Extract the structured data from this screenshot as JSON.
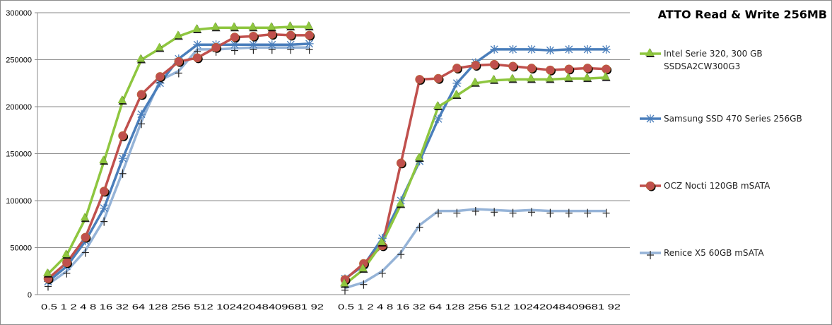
{
  "chart_data": {
    "type": "line",
    "title": "ATTO Read & Write 256MB",
    "xlabel": "",
    "ylabel": "",
    "ylim": [
      0,
      300000
    ],
    "yticks": [
      0,
      50000,
      100000,
      150000,
      200000,
      250000,
      300000
    ],
    "ytick_labels": [
      "0",
      "50000",
      "100000",
      "150000",
      "200000",
      "250000",
      "300000"
    ],
    "grid": true,
    "legend_position": "right",
    "categories": [
      "0.5",
      "1",
      "2",
      "4",
      "8",
      "16",
      "32",
      "64",
      "128",
      "256",
      "512",
      "1024",
      "2048",
      "4096",
      "8192"
    ],
    "panels": [
      {
        "series": [
          {
            "name": "Intel Serie 320, 300 GB SSDSA2CW300G3",
            "values": [
              22000,
              42000,
              81000,
              142000,
              206000,
              250000,
              262000,
              275000,
              282000,
              284000,
              284000,
              284000,
              284000,
              285000,
              285000
            ]
          },
          {
            "name": "Samsung SSD 470 Series 256GB",
            "values": [
              14000,
              30000,
              57000,
              92000,
              145000,
              192000,
              225000,
              251000,
              266000,
              266000,
              266000,
              266000,
              266000,
              266000,
              267000
            ]
          },
          {
            "name": "OCZ Nocti 120GB mSATA",
            "values": [
              17000,
              34000,
              61000,
              110000,
              169000,
              213000,
              232000,
              248000,
              252000,
              263000,
              274000,
              275000,
              277000,
              276000,
              276000
            ]
          },
          {
            "name": "Renice X5 60GB mSATA",
            "values": [
              11000,
              25000,
              47000,
              80000,
              131000,
              184000,
              228000,
              238000,
              261000,
              261000,
              262000,
              263000,
              263000,
              263000,
              263000
            ]
          }
        ]
      },
      {
        "series": [
          {
            "name": "Intel Serie 320, 300 GB SSDSA2CW300G3",
            "values": [
              11000,
              27000,
              55000,
              96000,
              145000,
              200000,
              212000,
              225000,
              228000,
              229000,
              229000,
              229000,
              230000,
              230000,
              231000
            ]
          },
          {
            "name": "Samsung SSD 470 Series 256GB",
            "values": [
              17000,
              31000,
              60000,
              100000,
              142000,
              187000,
              225000,
              247000,
              261000,
              261000,
              261000,
              260000,
              261000,
              261000,
              261000
            ]
          },
          {
            "name": "OCZ Nocti 120GB mSATA",
            "values": [
              16000,
              33000,
              52000,
              140000,
              229000,
              230000,
              241000,
              244000,
              245000,
              243000,
              241000,
              239000,
              240000,
              241000,
              240000
            ]
          },
          {
            "name": "Renice X5 60GB mSATA",
            "values": [
              7000,
              13000,
              25000,
              45000,
              74000,
              89000,
              89000,
              91000,
              90000,
              89000,
              90000,
              89000,
              89000,
              89000,
              89000
            ]
          }
        ]
      }
    ],
    "colors": [
      "#8ec63f",
      "#4a7ebb",
      "#c0504d",
      "#95b3d7"
    ],
    "markers": [
      "triangle",
      "asterisk",
      "circle",
      "plus"
    ],
    "x_tick_text": "0.5 1 2 4 8 16 32 64 128 256 512 10242048409681 92"
  }
}
